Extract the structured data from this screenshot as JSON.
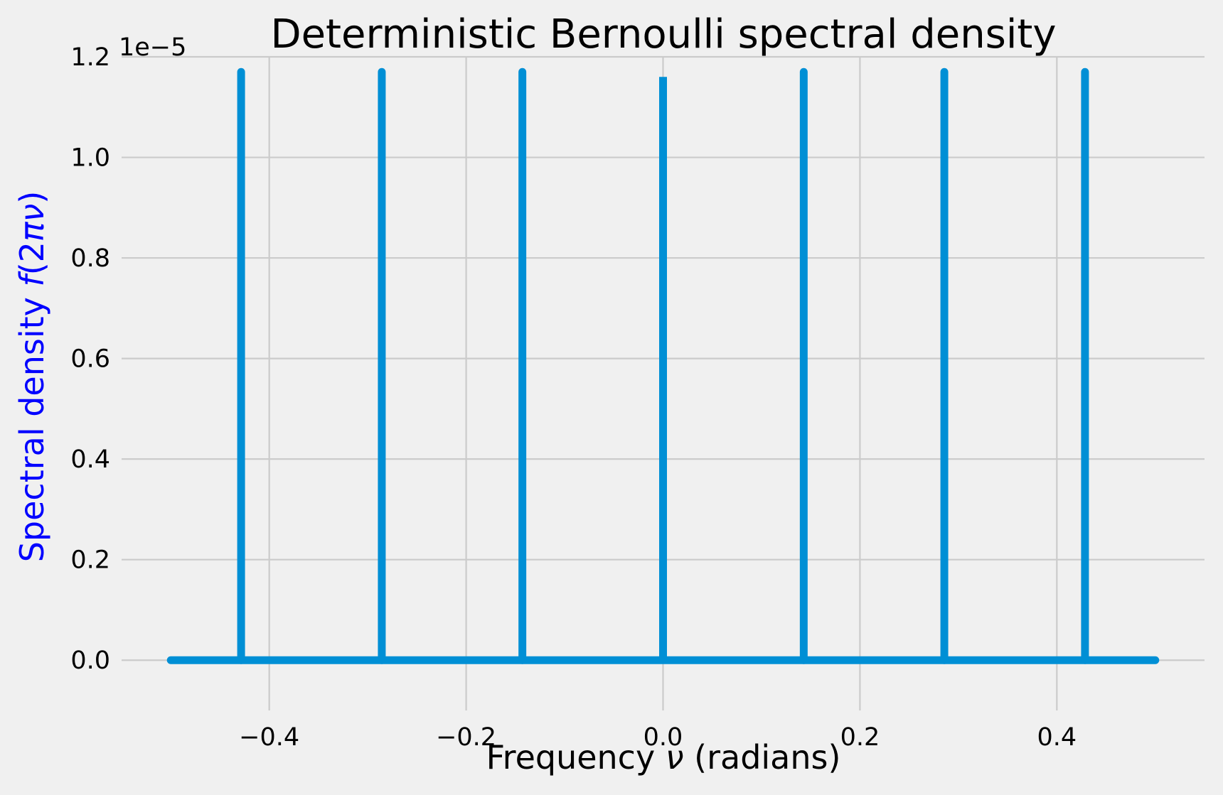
{
  "chart_data": {
    "type": "line",
    "title": "Deterministic Bernoulli spectral density",
    "xlabel": "Frequency ν (radians)",
    "ylabel": "Spectral density f(2πν)",
    "offset_label": "1e−5",
    "xlim": [
      -0.55,
      0.55
    ],
    "ylim": [
      -1e-06,
      1.2e-05
    ],
    "x_ticks": [
      -0.4,
      -0.2,
      0.0,
      0.2,
      0.4
    ],
    "x_tick_labels": [
      "−0.4",
      "−0.2",
      "0.0",
      "0.2",
      "0.4"
    ],
    "y_ticks": [
      0,
      2e-06,
      4e-06,
      6e-06,
      8e-06,
      1e-05,
      1.2e-05
    ],
    "y_tick_labels": [
      "0.0",
      "0.2",
      "0.4",
      "0.6",
      "0.8",
      "1.0",
      "1.2"
    ],
    "grid": true,
    "line_color": "#008fd5",
    "x_range": [
      -0.5,
      0.5
    ],
    "baseline": 0,
    "spikes": {
      "x": [
        -0.4286,
        -0.2857,
        -0.1429,
        0.0,
        0.1429,
        0.2857,
        0.4286
      ],
      "y": [
        1.17e-05,
        1.17e-05,
        1.17e-05,
        1.16e-05,
        1.17e-05,
        1.17e-05,
        1.17e-05
      ]
    }
  }
}
